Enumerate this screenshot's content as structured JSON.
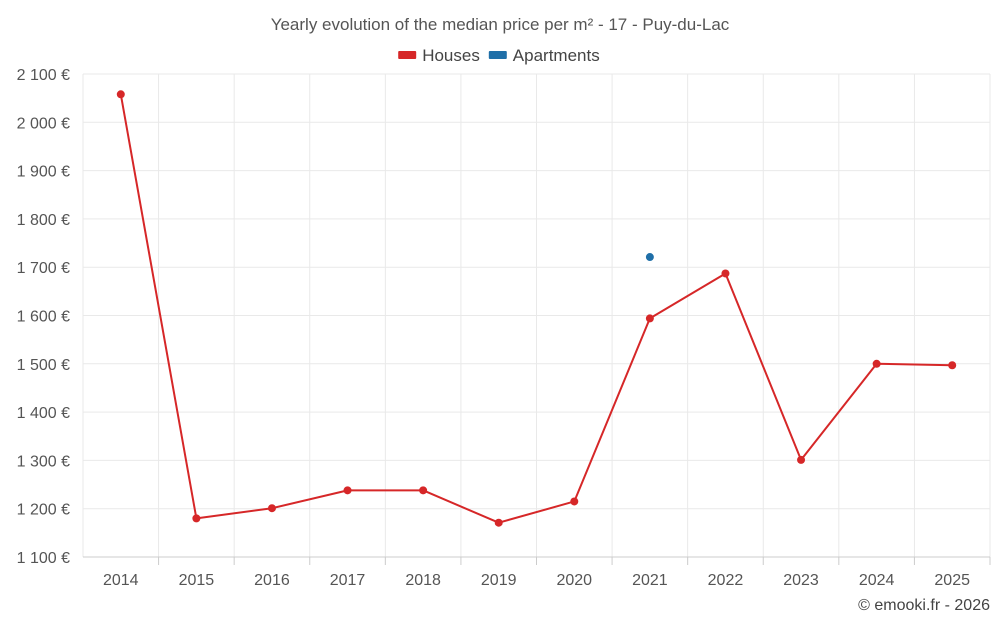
{
  "chart_data": {
    "type": "line",
    "title": "Yearly evolution of the median price per m² - 17 - Puy-du-Lac",
    "categories": [
      "2014",
      "2015",
      "2016",
      "2017",
      "2018",
      "2019",
      "2020",
      "2021",
      "2022",
      "2023",
      "2024",
      "2025"
    ],
    "series": [
      {
        "name": "Houses",
        "color": "#d62728",
        "values": [
          2058,
          1180,
          1201,
          1238,
          1238,
          1171,
          1215,
          1594,
          1687,
          1301,
          1500,
          1497
        ]
      },
      {
        "name": "Apartments",
        "color": "#1f6fa8",
        "values": [
          null,
          null,
          null,
          null,
          null,
          null,
          null,
          1721,
          null,
          null,
          null,
          null
        ]
      }
    ],
    "ylim": [
      1100,
      2100
    ],
    "yticks": [
      1100,
      1200,
      1300,
      1400,
      1500,
      1600,
      1700,
      1800,
      1900,
      2000,
      2100
    ],
    "ytick_labels": [
      "1 100 €",
      "1 200 €",
      "1 300 €",
      "1 400 €",
      "1 500 €",
      "1 600 €",
      "1 700 €",
      "1 800 €",
      "1 900 €",
      "2 000 €",
      "2 100 €"
    ],
    "grid": true,
    "legend_position": "top-center",
    "credit": "© emooki.fr - 2026"
  }
}
